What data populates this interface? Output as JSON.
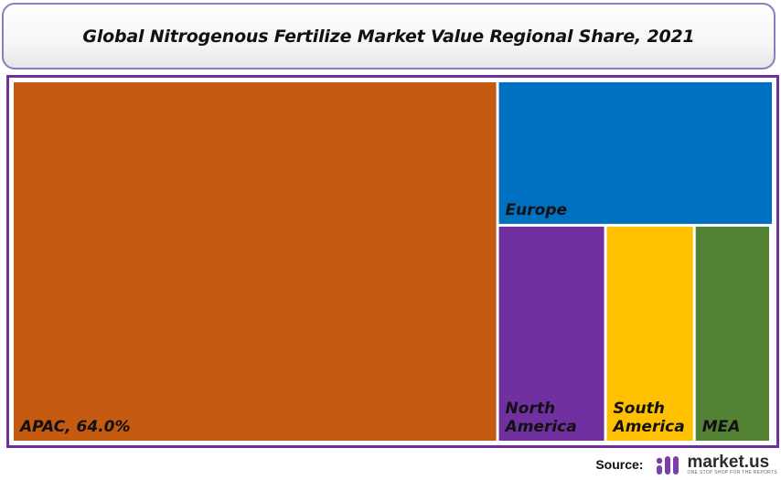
{
  "title": "Global Nitrogenous Fertilize Market Value Regional Share, 2021",
  "chart_data": {
    "type": "treemap",
    "title": "Global Nitrogenous Fertilize Market Value Regional Share, 2021",
    "items": [
      {
        "label": "APAC, 64.0%",
        "value": 64.0,
        "color": "#c55a11",
        "label_color": "#111111"
      },
      {
        "label": "Europe",
        "value": 14.5,
        "color": "#0070c0",
        "label_color": "#111111"
      },
      {
        "label": "North America",
        "value": 8.5,
        "color": "#7030a0",
        "label_color": "#111111"
      },
      {
        "label": "South America",
        "value": 7.0,
        "color": "#ffc000",
        "label_color": "#111111"
      },
      {
        "label": "MEA",
        "value": 6.0,
        "color": "#548235",
        "label_color": "#111111"
      }
    ]
  },
  "source": {
    "label": "Source:",
    "brand": "market.us",
    "tagline": "ONE STOP SHOP FOR THE REPORTS",
    "logo_icon": "market-us-logo-icon",
    "logo_color": "#7b3fa8"
  }
}
